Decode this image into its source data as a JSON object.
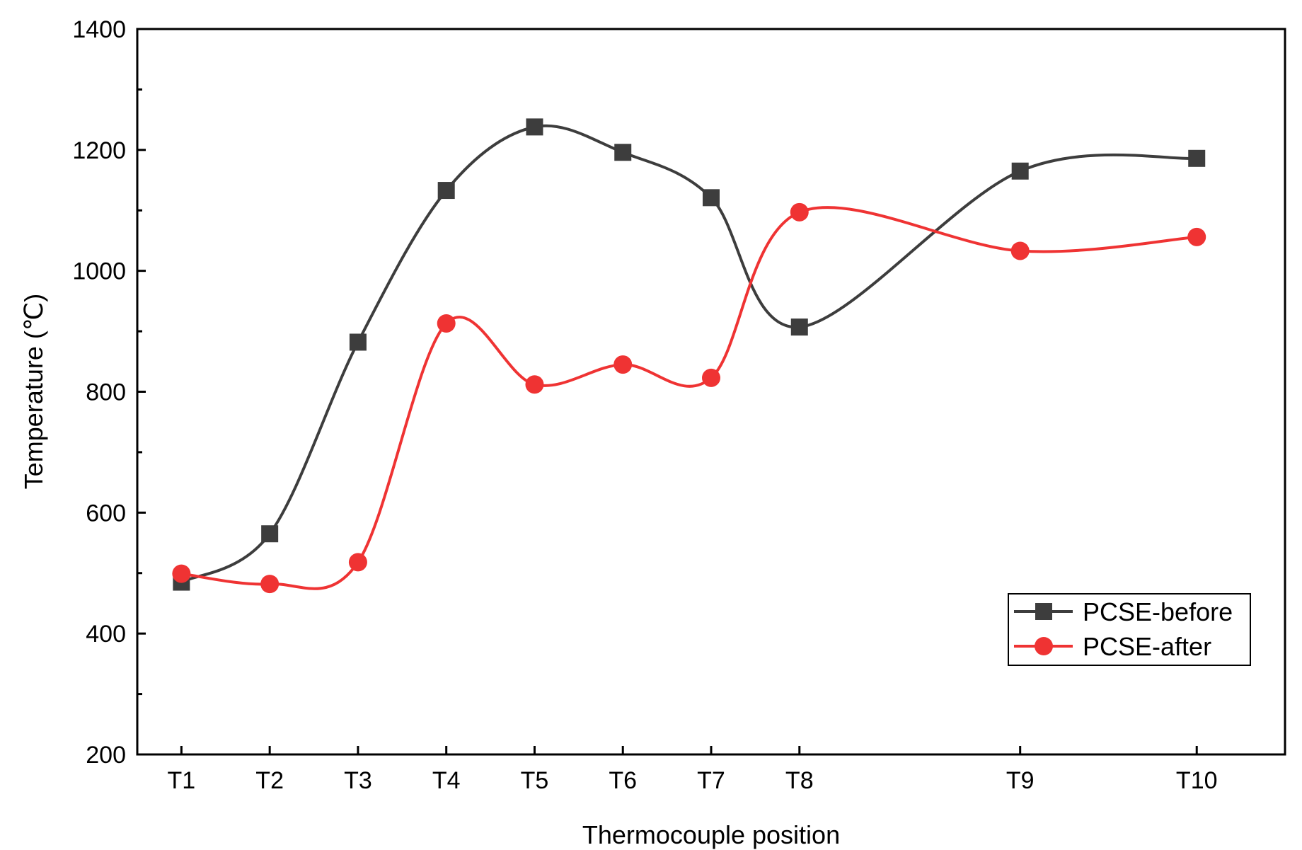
{
  "chart_data": {
    "type": "line",
    "title": "",
    "xlabel": "Thermocouple position",
    "ylabel": "Temperature (℃)",
    "ylim": [
      200,
      1400
    ],
    "yticks": [
      "200",
      "400",
      "600",
      "800",
      "1000",
      "1200",
      "1400"
    ],
    "categories": [
      "T1",
      "T2",
      "T3",
      "T4",
      "T5",
      "T6",
      "T7",
      "T8",
      "T9",
      "T10"
    ],
    "x": [
      1,
      2,
      3,
      4,
      5,
      6,
      7,
      8,
      10.5,
      12.5
    ],
    "xlim": [
      0.5,
      13.5
    ],
    "grid": false,
    "legend_position": "bottom-right",
    "series": [
      {
        "name": "PCSE-before",
        "marker": "square",
        "color": "#3d3d3d",
        "values": [
          485,
          565,
          882,
          1133,
          1238,
          1196,
          1121,
          907,
          1165,
          1186
        ]
      },
      {
        "name": "PCSE-after",
        "marker": "circle",
        "color": "#ef3333",
        "values": [
          499,
          482,
          518,
          913,
          812,
          845,
          823,
          1097,
          1033,
          1056
        ]
      }
    ]
  }
}
